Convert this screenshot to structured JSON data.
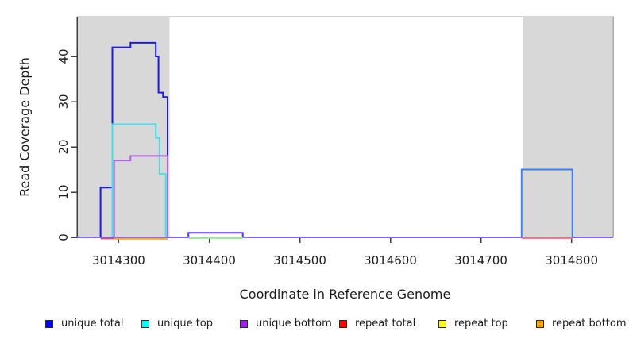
{
  "chart_data": {
    "type": "line",
    "subtype": "step-coverage-plot",
    "title": "",
    "xlabel": "Coordinate in Reference Genome",
    "ylabel": "Read Coverage Depth",
    "xlim": [
      3014254,
      3014846
    ],
    "ylim": [
      0,
      48.77
    ],
    "x_ticks": [
      3014300,
      3014400,
      3014500,
      3014600,
      3014700,
      3014800
    ],
    "y_ticks": [
      0,
      10,
      20,
      30,
      40
    ],
    "grid": false,
    "legend_position": "bottom",
    "shaded_regions": [
      {
        "name": "shaded-region-left",
        "from": 3014254,
        "to": 3014356,
        "color": "#d8d8d8"
      },
      {
        "name": "shaded-region-right",
        "from": 3014747,
        "to": 3014846,
        "color": "#d8d8d8"
      }
    ],
    "series": [
      {
        "name": "unique total (left peak)",
        "color": "#1c1ce0",
        "width": 2,
        "points": [
          [
            3014254,
            0
          ],
          [
            3014280,
            0
          ],
          [
            3014280,
            11
          ],
          [
            3014293,
            11
          ],
          [
            3014293,
            42
          ],
          [
            3014313,
            42
          ],
          [
            3014313,
            43
          ],
          [
            3014341,
            43
          ],
          [
            3014341,
            40
          ],
          [
            3014344,
            40
          ],
          [
            3014344,
            32
          ],
          [
            3014349,
            32
          ],
          [
            3014349,
            31
          ],
          [
            3014354,
            31
          ],
          [
            3014354,
            0
          ]
        ]
      },
      {
        "name": "unique top",
        "color": "#41dfe8",
        "width": 2,
        "points": [
          [
            3014293,
            0
          ],
          [
            3014293,
            25
          ],
          [
            3014341,
            25
          ],
          [
            3014341,
            22
          ],
          [
            3014345,
            22
          ],
          [
            3014345,
            14
          ],
          [
            3014352,
            14
          ],
          [
            3014352,
            0
          ]
        ]
      },
      {
        "name": "unique bottom",
        "color": "#b065df",
        "width": 2,
        "points": [
          [
            3014295,
            0
          ],
          [
            3014295,
            17
          ],
          [
            3014313,
            17
          ],
          [
            3014313,
            18
          ],
          [
            3014354,
            18
          ],
          [
            3014354,
            0
          ]
        ]
      },
      {
        "name": "unique total + unique bottom overlap (bump at 1)",
        "color": "#5a35ec",
        "width": 2,
        "points": [
          [
            3014377,
            0
          ],
          [
            3014377,
            1
          ],
          [
            3014437,
            1
          ],
          [
            3014437,
            0
          ]
        ]
      },
      {
        "name": "unique total + unique top overlap (box at 15)",
        "color": "#3c80f6",
        "width": 2,
        "points": [
          [
            3014745,
            0
          ],
          [
            3014745,
            15
          ],
          [
            3014801,
            15
          ],
          [
            3014801,
            0
          ]
        ]
      },
      {
        "name": "baseline violet segment a",
        "color": "#8166f6",
        "width": 2,
        "points": [
          [
            3014254,
            0
          ],
          [
            3014377,
            0
          ]
        ]
      },
      {
        "name": "baseline violet segment b",
        "color": "#8166f6",
        "width": 2,
        "points": [
          [
            3014437,
            0
          ],
          [
            3014745,
            0
          ]
        ]
      },
      {
        "name": "baseline violet segment c",
        "color": "#8166f6",
        "width": 2,
        "points": [
          [
            3014801,
            0
          ],
          [
            3014846,
            0
          ]
        ]
      },
      {
        "name": "baseline repeat red segment",
        "color": "#c4506e",
        "width": 2,
        "points": [
          [
            3014280,
            -0.25
          ],
          [
            3014295,
            -0.25
          ]
        ]
      },
      {
        "name": "baseline repeat bottom orange segment",
        "color": "#ffa216",
        "width": 2,
        "points": [
          [
            3014295,
            -0.3
          ],
          [
            3014354,
            -0.3
          ]
        ]
      },
      {
        "name": "baseline repeat green segment",
        "color": "#96e88e",
        "width": 2,
        "points": [
          [
            3014377,
            -0.15
          ],
          [
            3014437,
            -0.15
          ]
        ]
      },
      {
        "name": "baseline repeat pink segment",
        "color": "#ee7086",
        "width": 2,
        "points": [
          [
            3014745,
            -0.15
          ],
          [
            3014801,
            -0.15
          ]
        ]
      }
    ],
    "legend": {
      "items": [
        {
          "label": "unique total",
          "color": "#0000ff"
        },
        {
          "label": "unique top",
          "color": "#00ffff"
        },
        {
          "label": "unique bottom",
          "color": "#a020f0"
        },
        {
          "label": "repeat total",
          "color": "#ff0000"
        },
        {
          "label": "repeat top",
          "color": "#ffff00"
        },
        {
          "label": "repeat bottom",
          "color": "#ffa500"
        }
      ]
    },
    "style": {
      "plot_border_top_right": "#ababab",
      "axis_color": "#3d3d3d",
      "text_color": "#1b1b1b",
      "shaded_region_color": "#d8d8d8",
      "background": "#ffffff"
    }
  }
}
